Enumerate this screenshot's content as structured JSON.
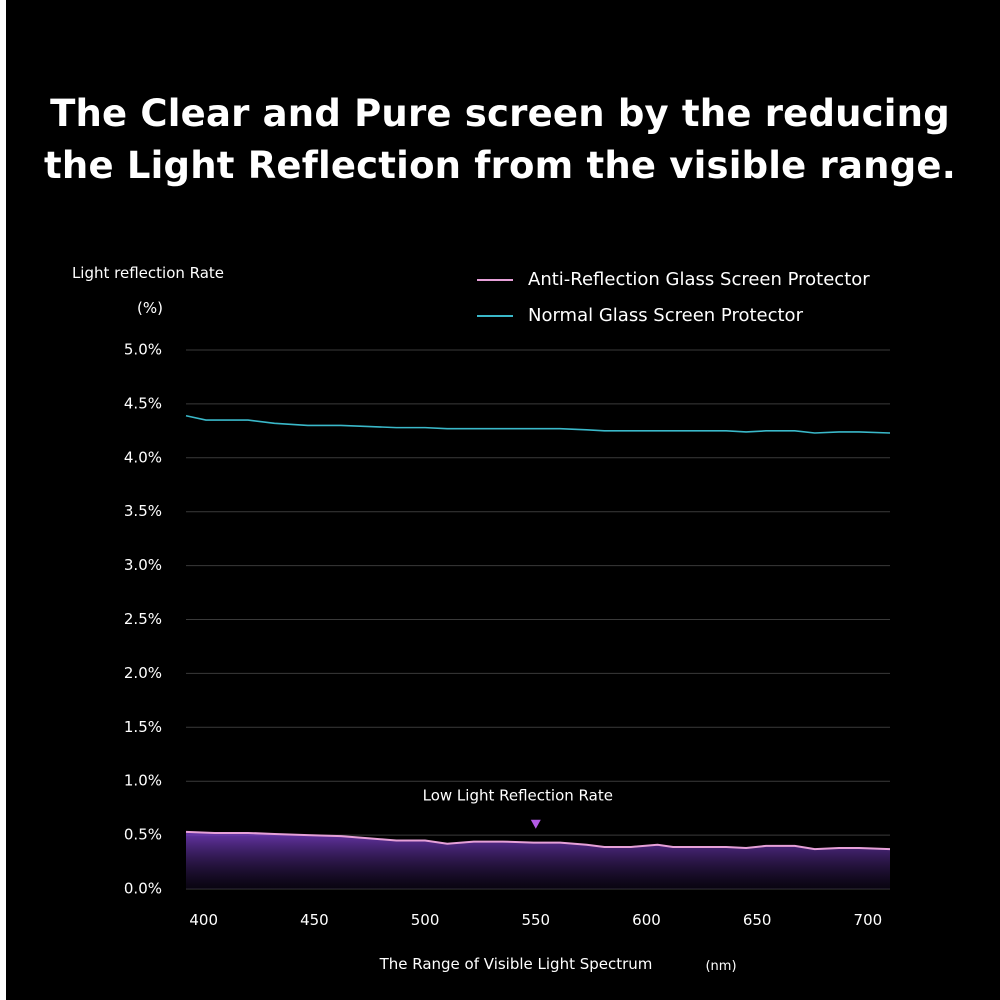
{
  "title": {
    "line1": "The Clear and Pure screen by the reducing",
    "line2": "the Light Reflection from the visible range."
  },
  "colors": {
    "background": "#000000",
    "anti_reflection_line": "#e6a0d8",
    "anti_reflection_fill_top": "#7a3fc8",
    "normal_line": "#3ab8c9",
    "grid": "#3a3a3a",
    "marker": "#b45be6"
  },
  "chart_data": {
    "type": "line",
    "title": "",
    "ylabel": "Light reflection Rate",
    "ylabel_unit": "(%)",
    "xlabel": "The Range of Visible Light Spectrum",
    "xlabel_unit": "(nm)",
    "xlim": [
      392,
      710
    ],
    "ylim": [
      0,
      5
    ],
    "x_ticks": [
      "400",
      "450",
      "500",
      "550",
      "600",
      "650",
      "700"
    ],
    "x_tick_values": [
      400,
      450,
      500,
      550,
      600,
      650,
      700
    ],
    "y_ticks": [
      "0.0%",
      "0.5%",
      "1.0%",
      "1.5%",
      "2.0%",
      "2.5%",
      "3.0%",
      "3.5%",
      "4.0%",
      "4.5%",
      "5.0%"
    ],
    "y_tick_values": [
      0,
      0.5,
      1.0,
      1.5,
      2.0,
      2.5,
      3.0,
      3.5,
      4.0,
      4.5,
      5.0
    ],
    "grid": true,
    "legend_position": "top-right",
    "series": [
      {
        "name": "Anti-Reflection Glass Screen Protector",
        "x": [
          392,
          405,
          420,
          432,
          447,
          462,
          475,
          487,
          500,
          510,
          522,
          535,
          549,
          561,
          573,
          581,
          593,
          605,
          612,
          624,
          636,
          645,
          654,
          667,
          676,
          687,
          696,
          710
        ],
        "y": [
          0.53,
          0.52,
          0.52,
          0.51,
          0.5,
          0.49,
          0.47,
          0.45,
          0.45,
          0.42,
          0.44,
          0.44,
          0.43,
          0.43,
          0.41,
          0.39,
          0.39,
          0.41,
          0.39,
          0.39,
          0.39,
          0.38,
          0.4,
          0.4,
          0.37,
          0.38,
          0.38,
          0.37
        ]
      },
      {
        "name": "Normal Glass Screen Protector",
        "x": [
          392,
          401,
          420,
          432,
          447,
          462,
          475,
          487,
          500,
          510,
          522,
          535,
          549,
          561,
          573,
          581,
          593,
          605,
          612,
          624,
          636,
          645,
          654,
          667,
          676,
          687,
          696,
          710
        ],
        "y": [
          4.39,
          4.35,
          4.35,
          4.32,
          4.3,
          4.3,
          4.29,
          4.28,
          4.28,
          4.27,
          4.27,
          4.27,
          4.27,
          4.27,
          4.26,
          4.25,
          4.25,
          4.25,
          4.25,
          4.25,
          4.25,
          4.24,
          4.25,
          4.25,
          4.23,
          4.24,
          4.24,
          4.23
        ]
      }
    ],
    "annotation": {
      "text": "Low Light Reflection Rate",
      "x": 550,
      "y": 0.55
    }
  }
}
